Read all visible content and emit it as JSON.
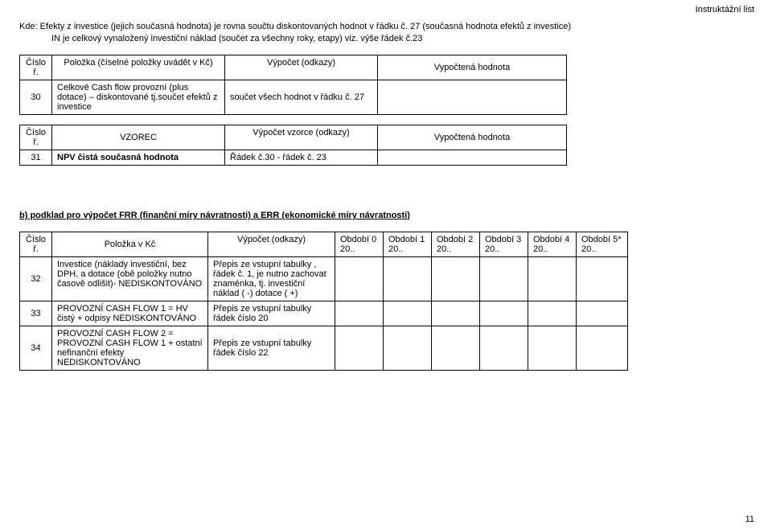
{
  "header": {
    "topRight": "Instruktážní list"
  },
  "intro": {
    "line1": "Kde: Efekty z investice (jejich současná hodnota) je rovna součtu diskontovaných hodnot v řádku č. 27 (současná hodnota efektů z investice)",
    "line2": "IN je celkový vynaložený investiční náklad (součet za všechny roky, etapy) viz. výše řádek č.23"
  },
  "table1": {
    "head": {
      "col0": "Číslo ř.",
      "col1": "Položka (číselné položky uvádět v Kč)",
      "col2": "Výpočet (odkazy)",
      "col3": "Vypočtená hodnota"
    },
    "row": {
      "num": "30",
      "item": "Celkové Cash flow provozní (plus dotace) – diskontované tj.součet efektů z investice",
      "calc": "součet všech hodnot v řádku č. 27",
      "val": ""
    }
  },
  "table2": {
    "head": {
      "col0": "Číslo ř.",
      "col1": "VZOREC",
      "col2": "Výpočet vzorce (odkazy)",
      "col3": "Vypočtená hodnota"
    },
    "row": {
      "num": "31",
      "item": "NPV čistá současná hodnota",
      "calc": "Řádek č.30  - řádek č. 23",
      "val": ""
    }
  },
  "sectionB": "b) podklad pro výpočet FRR (finanční míry návratnosti) a ERR (ekonomické míry návratnosti)",
  "table3": {
    "head": {
      "col0": "Číslo ř.",
      "col1": "Položka v Kč",
      "col2": "Výpočet (odkazy)",
      "p0": "Období 0 20..",
      "p1": "Období 1 20..",
      "p2": "Období 2 20..",
      "p3": "Období 3 20..",
      "p4": "Období 4 20..",
      "p5": "Období 5* 20.."
    },
    "rows": [
      {
        "num": "32",
        "item": "Investice (náklady investiční, bez DPH, a dotace (obě položky nutno časově odlišit)- NEDISKONTOVÁNO",
        "calc": "Přepis ze vstupní tabulky , řádek č. 1, je nutno zachovat znaménka, tj. investiční náklad ( -) dotace ( +)"
      },
      {
        "num": "33",
        "item": "PROVOZNÍ CASH FLOW 1 = HV čistý + odpisy NEDISKONTOVÁNO",
        "calc": "Přepis ze vstupní tabulky řádek číslo 20"
      },
      {
        "num": "34",
        "item": "PROVOZNÍ CASH FLOW 2 = PROVOZNÍ CASH FLOW 1 + ostatní nefinanční efekty NEDISKONTOVÁNO",
        "calc": "Přepis ze vstupní tabulky řádek číslo 22"
      }
    ]
  },
  "pageNumber": "11"
}
